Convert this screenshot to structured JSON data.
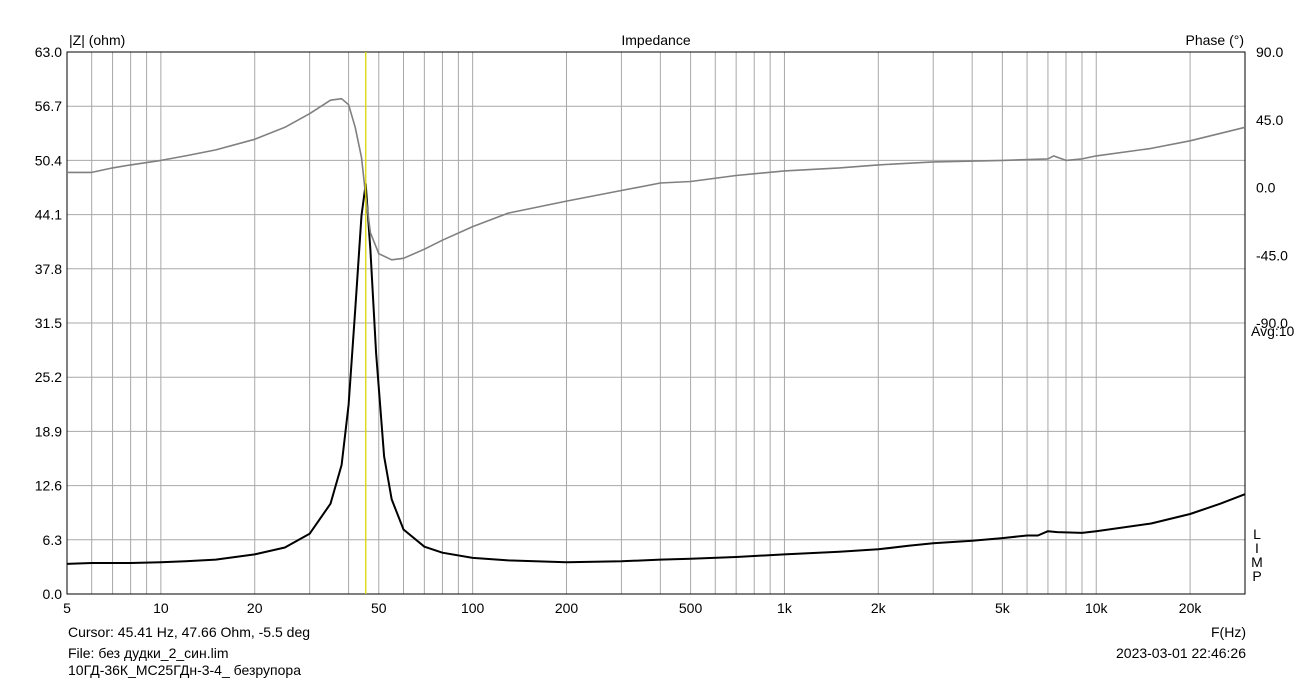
{
  "chart_data": {
    "type": "line",
    "title": "Impedance",
    "xlabel": "F(Hz)",
    "ylabel": "|Z| (ohm)",
    "y2label": "Phase (°)",
    "xscale": "log",
    "xlim": [
      5,
      30000
    ],
    "ylim": [
      0,
      63
    ],
    "y2lim": [
      -270,
      90
    ],
    "grid": true,
    "legend": "none",
    "x_ticks": [
      {
        "value": 5,
        "label": "5"
      },
      {
        "value": 10,
        "label": "10"
      },
      {
        "value": 20,
        "label": "20"
      },
      {
        "value": 50,
        "label": "50"
      },
      {
        "value": 100,
        "label": "100"
      },
      {
        "value": 200,
        "label": "200"
      },
      {
        "value": 500,
        "label": "500"
      },
      {
        "value": 1000,
        "label": "1k"
      },
      {
        "value": 2000,
        "label": "2k"
      },
      {
        "value": 5000,
        "label": "5k"
      },
      {
        "value": 10000,
        "label": "10k"
      },
      {
        "value": 20000,
        "label": "20k"
      }
    ],
    "y_ticks": [
      "0.0",
      "6.3",
      "12.6",
      "18.9",
      "25.2",
      "31.5",
      "37.8",
      "44.1",
      "50.4",
      "56.7",
      "63.0"
    ],
    "y2_ticks": [
      {
        "value": 90,
        "label": "90.0"
      },
      {
        "value": 45,
        "label": "45.0"
      },
      {
        "value": 0,
        "label": "0.0"
      },
      {
        "value": -45,
        "label": "-45.0"
      },
      {
        "value": -90,
        "label": "-90.0"
      }
    ],
    "avg_label": "Avg:10",
    "side_label": "LIMP",
    "cursor": {
      "x": 45.41
    },
    "series": [
      {
        "color": "#000000",
        "axis": "left",
        "x": [
          5,
          6,
          7,
          8,
          10,
          12,
          15,
          20,
          25,
          30,
          35,
          38,
          40,
          42,
          44,
          45.4,
          47,
          49,
          52,
          55,
          60,
          70,
          80,
          100,
          130,
          200,
          300,
          400,
          500,
          700,
          1000,
          1500,
          2000,
          2500,
          3000,
          4000,
          5000,
          6000,
          6500,
          7000,
          7500,
          9000,
          10000,
          15000,
          20000,
          25000,
          30000
        ],
        "y": [
          3.5,
          3.6,
          3.6,
          3.6,
          3.7,
          3.8,
          4.0,
          4.6,
          5.4,
          7.0,
          10.5,
          15.0,
          22.0,
          33.0,
          44.0,
          47.66,
          40.0,
          28.0,
          16.0,
          11.0,
          7.5,
          5.5,
          4.8,
          4.2,
          3.9,
          3.7,
          3.8,
          4.0,
          4.1,
          4.3,
          4.6,
          4.9,
          5.2,
          5.6,
          5.9,
          6.2,
          6.5,
          6.8,
          6.8,
          7.3,
          7.2,
          7.1,
          7.3,
          8.2,
          9.3,
          10.5,
          11.6
        ]
      },
      {
        "color": "#808080",
        "axis": "right",
        "x": [
          5,
          6,
          7,
          8,
          10,
          12,
          15,
          20,
          25,
          30,
          35,
          38,
          40,
          42,
          44,
          45.4,
          47,
          50,
          55,
          60,
          70,
          80,
          100,
          130,
          200,
          300,
          400,
          500,
          700,
          1000,
          1500,
          2000,
          3000,
          5000,
          7000,
          7300,
          8000,
          9000,
          10000,
          15000,
          20000,
          30000
        ],
        "y": [
          10,
          10,
          13,
          15,
          18,
          21,
          25,
          32,
          40,
          49,
          58,
          59,
          55,
          40,
          20,
          -5.5,
          -30,
          -44,
          -48,
          -47,
          -41,
          -35,
          -26,
          -17,
          -9,
          -2,
          3,
          4,
          8,
          11,
          13,
          15,
          17,
          18,
          19,
          21,
          18,
          19,
          21,
          26,
          31,
          40
        ]
      }
    ]
  },
  "footer": {
    "cursor_text": "Cursor: 45.41 Hz, 47.66 Ohm, -5.5 deg",
    "file_text": "File: без дудки_2_син.lim",
    "description": "10ГД-36К_МС25ГДн-3-4_ безрупора",
    "timestamp": "2023-03-01 22:46:26"
  }
}
